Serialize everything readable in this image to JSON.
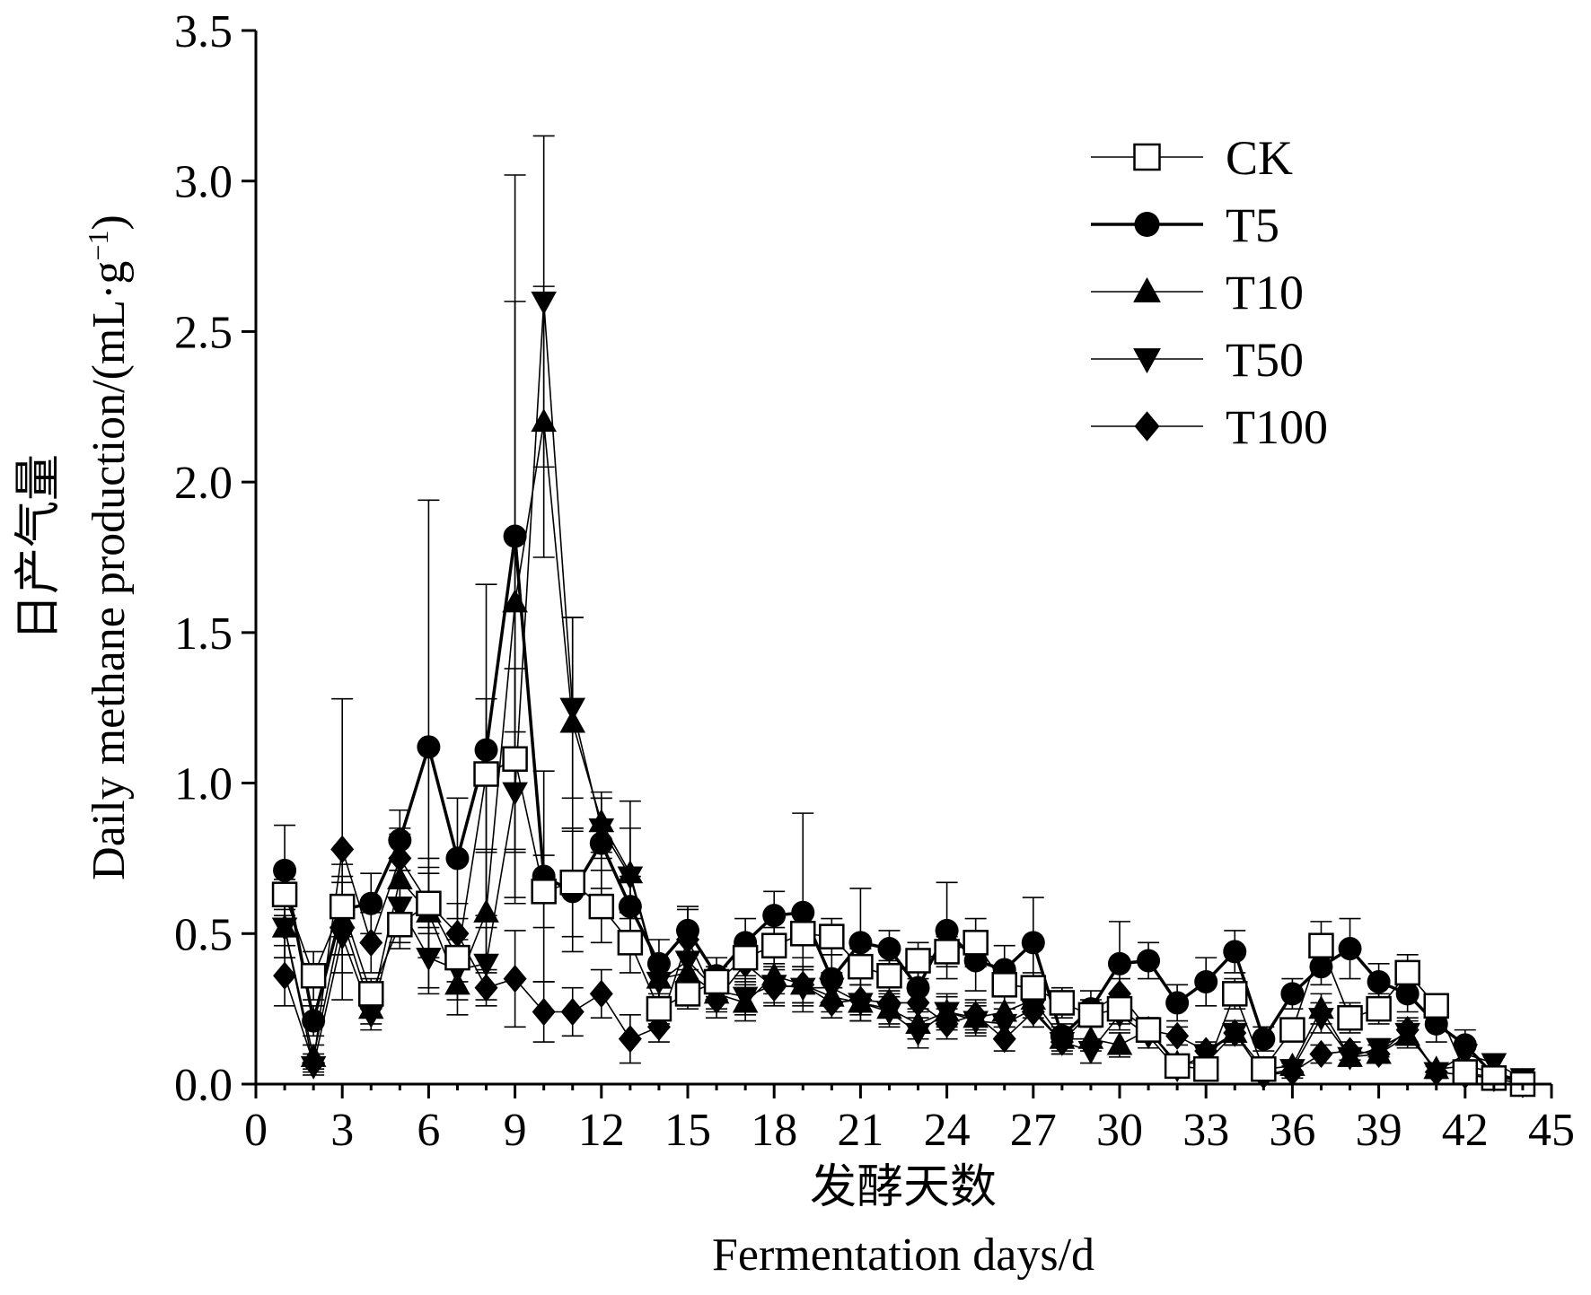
{
  "chart_data": {
    "type": "line",
    "title": "",
    "xlabel_cn": "发酵天数",
    "xlabel_en": "Fermentation days/d",
    "ylabel_cn": "日产气量",
    "ylabel_en": "Daily methane production/(mL·g",
    "ylabel_sup": "−1",
    "ylabel_end": ")",
    "xlim": [
      0,
      45
    ],
    "ylim": [
      0,
      3.5
    ],
    "xticks": [
      0,
      3,
      6,
      9,
      12,
      15,
      18,
      21,
      24,
      27,
      30,
      33,
      36,
      39,
      42,
      45
    ],
    "yticks": [
      "0.0",
      "0.5",
      "1.0",
      "1.5",
      "2.0",
      "2.5",
      "3.0",
      "3.5"
    ],
    "legend_position": "top-right",
    "grid": false,
    "x": [
      1,
      2,
      3,
      4,
      5,
      6,
      7,
      8,
      9,
      10,
      11,
      12,
      13,
      14,
      15,
      16,
      17,
      18,
      19,
      20,
      21,
      22,
      23,
      24,
      25,
      26,
      27,
      28,
      29,
      30,
      31,
      32,
      33,
      34,
      35,
      36,
      37,
      38,
      39,
      40,
      41,
      42,
      43,
      44
    ],
    "series": [
      {
        "name": "CK",
        "marker": "square-open",
        "values": [
          0.63,
          0.36,
          0.59,
          0.3,
          0.53,
          0.6,
          0.42,
          1.03,
          1.08,
          0.64,
          0.67,
          0.59,
          0.47,
          0.25,
          0.3,
          0.34,
          0.42,
          0.46,
          0.5,
          0.49,
          0.39,
          0.36,
          0.41,
          0.44,
          0.47,
          0.33,
          0.32,
          0.27,
          0.23,
          0.25,
          0.18,
          0.06,
          0.05,
          0.3,
          0.05,
          0.18,
          0.46,
          0.22,
          0.25,
          0.37,
          0.26,
          0.04,
          0.02,
          0.0
        ],
        "errors": [
          0.05,
          0.08,
          0.1,
          0.05,
          0.08,
          0.15,
          0.08,
          0.25,
          0.3,
          0.12,
          0.18,
          0.12,
          0.1,
          0.05,
          0.05,
          0.05,
          0.06,
          0.06,
          0.08,
          0.06,
          0.06,
          0.05,
          0.06,
          0.05,
          0.08,
          0.06,
          0.05,
          0.05,
          0.04,
          0.05,
          0.04,
          0.03,
          0.02,
          0.05,
          0.02,
          0.03,
          0.08,
          0.05,
          0.05,
          0.06,
          0.04,
          0.02,
          0.01,
          0.0
        ]
      },
      {
        "name": "T5",
        "marker": "circle-filled",
        "values": [
          0.71,
          0.21,
          0.58,
          0.6,
          0.81,
          1.12,
          0.75,
          1.11,
          1.82,
          0.69,
          0.64,
          0.8,
          0.59,
          0.4,
          0.51,
          0.36,
          0.47,
          0.56,
          0.57,
          0.35,
          0.47,
          0.45,
          0.32,
          0.51,
          0.41,
          0.38,
          0.47,
          0.16,
          0.25,
          0.4,
          0.41,
          0.27,
          0.34,
          0.44,
          0.15,
          0.3,
          0.39,
          0.45,
          0.34,
          0.3,
          0.2,
          0.13,
          0.03,
          0.01
        ],
        "errors": [
          0.15,
          0.05,
          0.15,
          0.1,
          0.1,
          0.82,
          0.2,
          0.55,
          1.2,
          0.35,
          0.2,
          0.15,
          0.1,
          0.08,
          0.08,
          0.06,
          0.08,
          0.08,
          0.33,
          0.08,
          0.18,
          0.06,
          0.08,
          0.16,
          0.1,
          0.08,
          0.15,
          0.04,
          0.06,
          0.14,
          0.06,
          0.06,
          0.08,
          0.07,
          0.04,
          0.05,
          0.06,
          0.1,
          0.06,
          0.06,
          0.06,
          0.05,
          0.02,
          0.0
        ]
      },
      {
        "name": "T10",
        "marker": "triangle-up-filled",
        "values": [
          0.52,
          0.09,
          0.55,
          0.25,
          0.68,
          0.57,
          0.33,
          0.57,
          1.6,
          2.2,
          1.2,
          0.87,
          0.7,
          0.35,
          0.37,
          0.3,
          0.27,
          0.36,
          0.33,
          0.29,
          0.27,
          0.25,
          0.2,
          0.24,
          0.22,
          0.24,
          0.28,
          0.15,
          0.15,
          0.13,
          0.18,
          0.07,
          0.07,
          0.17,
          0.05,
          0.06,
          0.25,
          0.09,
          0.1,
          0.16,
          0.05,
          0.06,
          0.04,
          0.01
        ],
        "errors": [
          0.1,
          0.04,
          0.12,
          0.05,
          0.15,
          0.15,
          0.1,
          0.2,
          1.0,
          0.45,
          0.35,
          0.1,
          0.15,
          0.06,
          0.07,
          0.06,
          0.06,
          0.06,
          0.06,
          0.05,
          0.06,
          0.05,
          0.05,
          0.06,
          0.05,
          0.05,
          0.06,
          0.04,
          0.04,
          0.04,
          0.04,
          0.02,
          0.02,
          0.04,
          0.02,
          0.02,
          0.05,
          0.03,
          0.03,
          0.04,
          0.02,
          0.02,
          0.01,
          0.0
        ]
      },
      {
        "name": "T50",
        "marker": "triangle-down-filled",
        "values": [
          0.52,
          0.06,
          0.49,
          0.23,
          0.59,
          0.42,
          0.38,
          0.4,
          0.97,
          2.6,
          1.25,
          0.85,
          0.69,
          0.34,
          0.41,
          0.31,
          0.29,
          0.33,
          0.32,
          0.32,
          0.27,
          0.24,
          0.17,
          0.24,
          0.21,
          0.2,
          0.25,
          0.14,
          0.11,
          0.23,
          0.16,
          0.05,
          0.1,
          0.17,
          0.03,
          0.05,
          0.22,
          0.09,
          0.12,
          0.17,
          0.04,
          0.1,
          0.07,
          0.02
        ],
        "errors": [
          0.1,
          0.03,
          0.12,
          0.05,
          0.12,
          0.1,
          0.1,
          0.12,
          0.2,
          0.55,
          0.3,
          0.1,
          0.25,
          0.06,
          0.07,
          0.06,
          0.06,
          0.06,
          0.06,
          0.05,
          0.06,
          0.05,
          0.05,
          0.05,
          0.05,
          0.05,
          0.06,
          0.04,
          0.04,
          0.05,
          0.04,
          0.02,
          0.02,
          0.04,
          0.02,
          0.02,
          0.05,
          0.03,
          0.03,
          0.04,
          0.02,
          0.03,
          0.02,
          0.0
        ]
      },
      {
        "name": "T100",
        "marker": "diamond-filled",
        "values": [
          0.36,
          0.07,
          0.78,
          0.47,
          0.75,
          0.6,
          0.5,
          0.32,
          0.35,
          0.24,
          0.24,
          0.3,
          0.15,
          0.19,
          0.48,
          0.28,
          0.4,
          0.32,
          0.33,
          0.27,
          0.28,
          0.27,
          0.27,
          0.2,
          0.23,
          0.15,
          0.24,
          0.14,
          0.24,
          0.3,
          0.18,
          0.16,
          0.11,
          0.17,
          0.03,
          0.04,
          0.1,
          0.11,
          0.1,
          0.18,
          0.04,
          0.03,
          0.02,
          0.0
        ],
        "errors": [
          0.1,
          0.03,
          0.5,
          0.1,
          0.1,
          0.1,
          0.1,
          0.06,
          0.16,
          0.1,
          0.08,
          0.08,
          0.08,
          0.05,
          0.1,
          0.06,
          0.06,
          0.06,
          0.06,
          0.05,
          0.05,
          0.05,
          0.05,
          0.05,
          0.05,
          0.04,
          0.05,
          0.04,
          0.04,
          0.05,
          0.04,
          0.03,
          0.03,
          0.04,
          0.02,
          0.02,
          0.03,
          0.03,
          0.03,
          0.04,
          0.02,
          0.02,
          0.01,
          0.0
        ]
      }
    ]
  }
}
